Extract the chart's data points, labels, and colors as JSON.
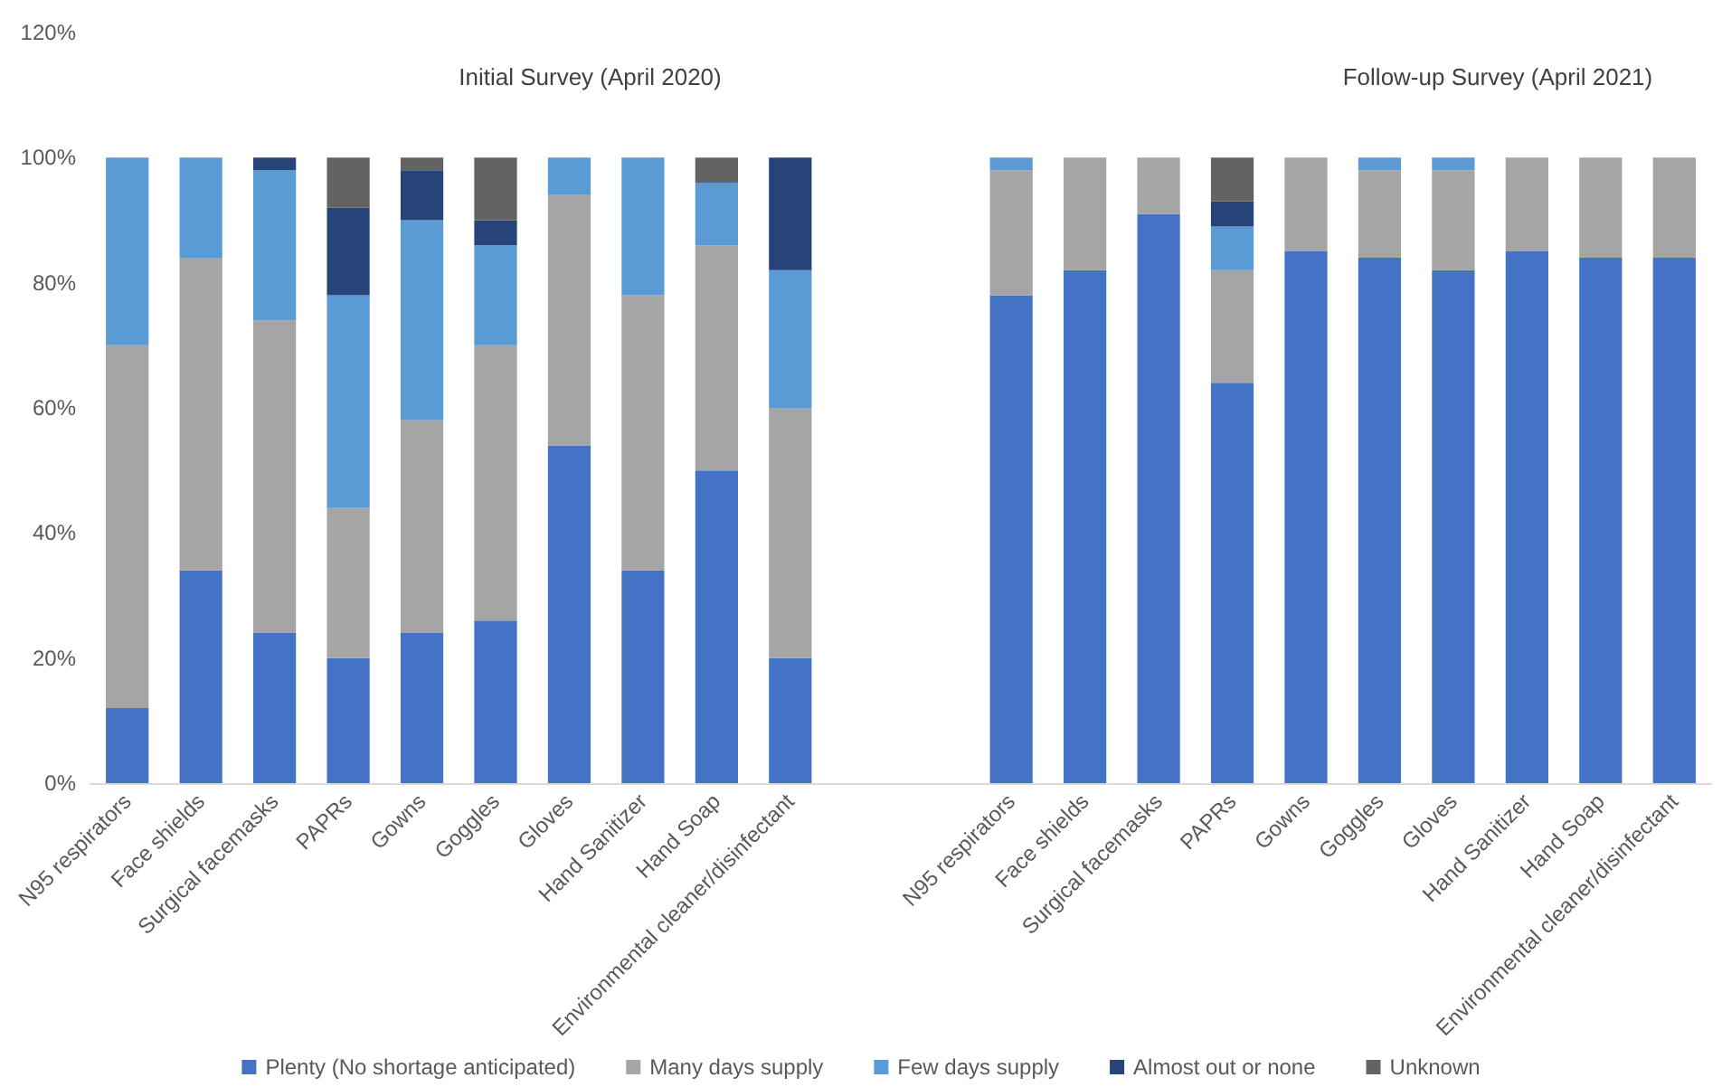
{
  "chart_data": {
    "type": "bar",
    "stacked": true,
    "annotations": [
      "Initial Survey (April 2020)",
      "Follow-up Survey (April 2021)"
    ],
    "categories": [
      "N95 respirators",
      "Face shields",
      "Surgical facemasks",
      "PAPRs",
      "Gowns",
      "Goggles",
      "Gloves",
      "Hand Sanitizer",
      "Hand Soap",
      "Environmental cleaner/disinfectant",
      null,
      null,
      "N95 respirators",
      "Face shields",
      "Surgical facemasks",
      "PAPRs",
      "Gowns",
      "Goggles",
      "Gloves",
      "Hand Sanitizer",
      "Hand Soap",
      "Environmental cleaner/disinfectant"
    ],
    "series": [
      {
        "name": "Plenty (No shortage anticipated)",
        "color": "#4472c4",
        "values": [
          12,
          34,
          24,
          20,
          24,
          26,
          54,
          34,
          50,
          20,
          null,
          null,
          78,
          82,
          91,
          64,
          85,
          84,
          82,
          85,
          84,
          84
        ]
      },
      {
        "name": "Many days supply",
        "color": "#a5a5a5",
        "values": [
          58,
          50,
          50,
          24,
          34,
          44,
          40,
          44,
          36,
          40,
          null,
          null,
          20,
          18,
          9,
          18,
          15,
          14,
          16,
          15,
          16,
          16
        ]
      },
      {
        "name": "Few days supply",
        "color": "#5b9bd5",
        "values": [
          30,
          16,
          24,
          34,
          32,
          16,
          6,
          22,
          10,
          22,
          null,
          null,
          2,
          0,
          0,
          7,
          0,
          2,
          2,
          0,
          0,
          0
        ]
      },
      {
        "name": "Almost out or none",
        "color": "#264478",
        "values": [
          0,
          0,
          2,
          14,
          8,
          4,
          0,
          0,
          0,
          18,
          null,
          null,
          0,
          0,
          0,
          4,
          0,
          0,
          0,
          0,
          0,
          0
        ]
      },
      {
        "name": "Unknown",
        "color": "#636363",
        "values": [
          0,
          0,
          0,
          8,
          2,
          10,
          0,
          0,
          4,
          0,
          null,
          null,
          0,
          0,
          0,
          7,
          0,
          0,
          0,
          0,
          0,
          0
        ]
      }
    ],
    "ylim": [
      0,
      120
    ],
    "yticks": [
      {
        "value": 0,
        "label": "0%"
      },
      {
        "value": 20,
        "label": "20%"
      },
      {
        "value": 40,
        "label": "40%"
      },
      {
        "value": 60,
        "label": "60%"
      },
      {
        "value": 80,
        "label": "80%"
      },
      {
        "value": 100,
        "label": "100%"
      },
      {
        "value": 120,
        "label": "120%"
      }
    ],
    "grid": false,
    "legend": "bottom"
  }
}
